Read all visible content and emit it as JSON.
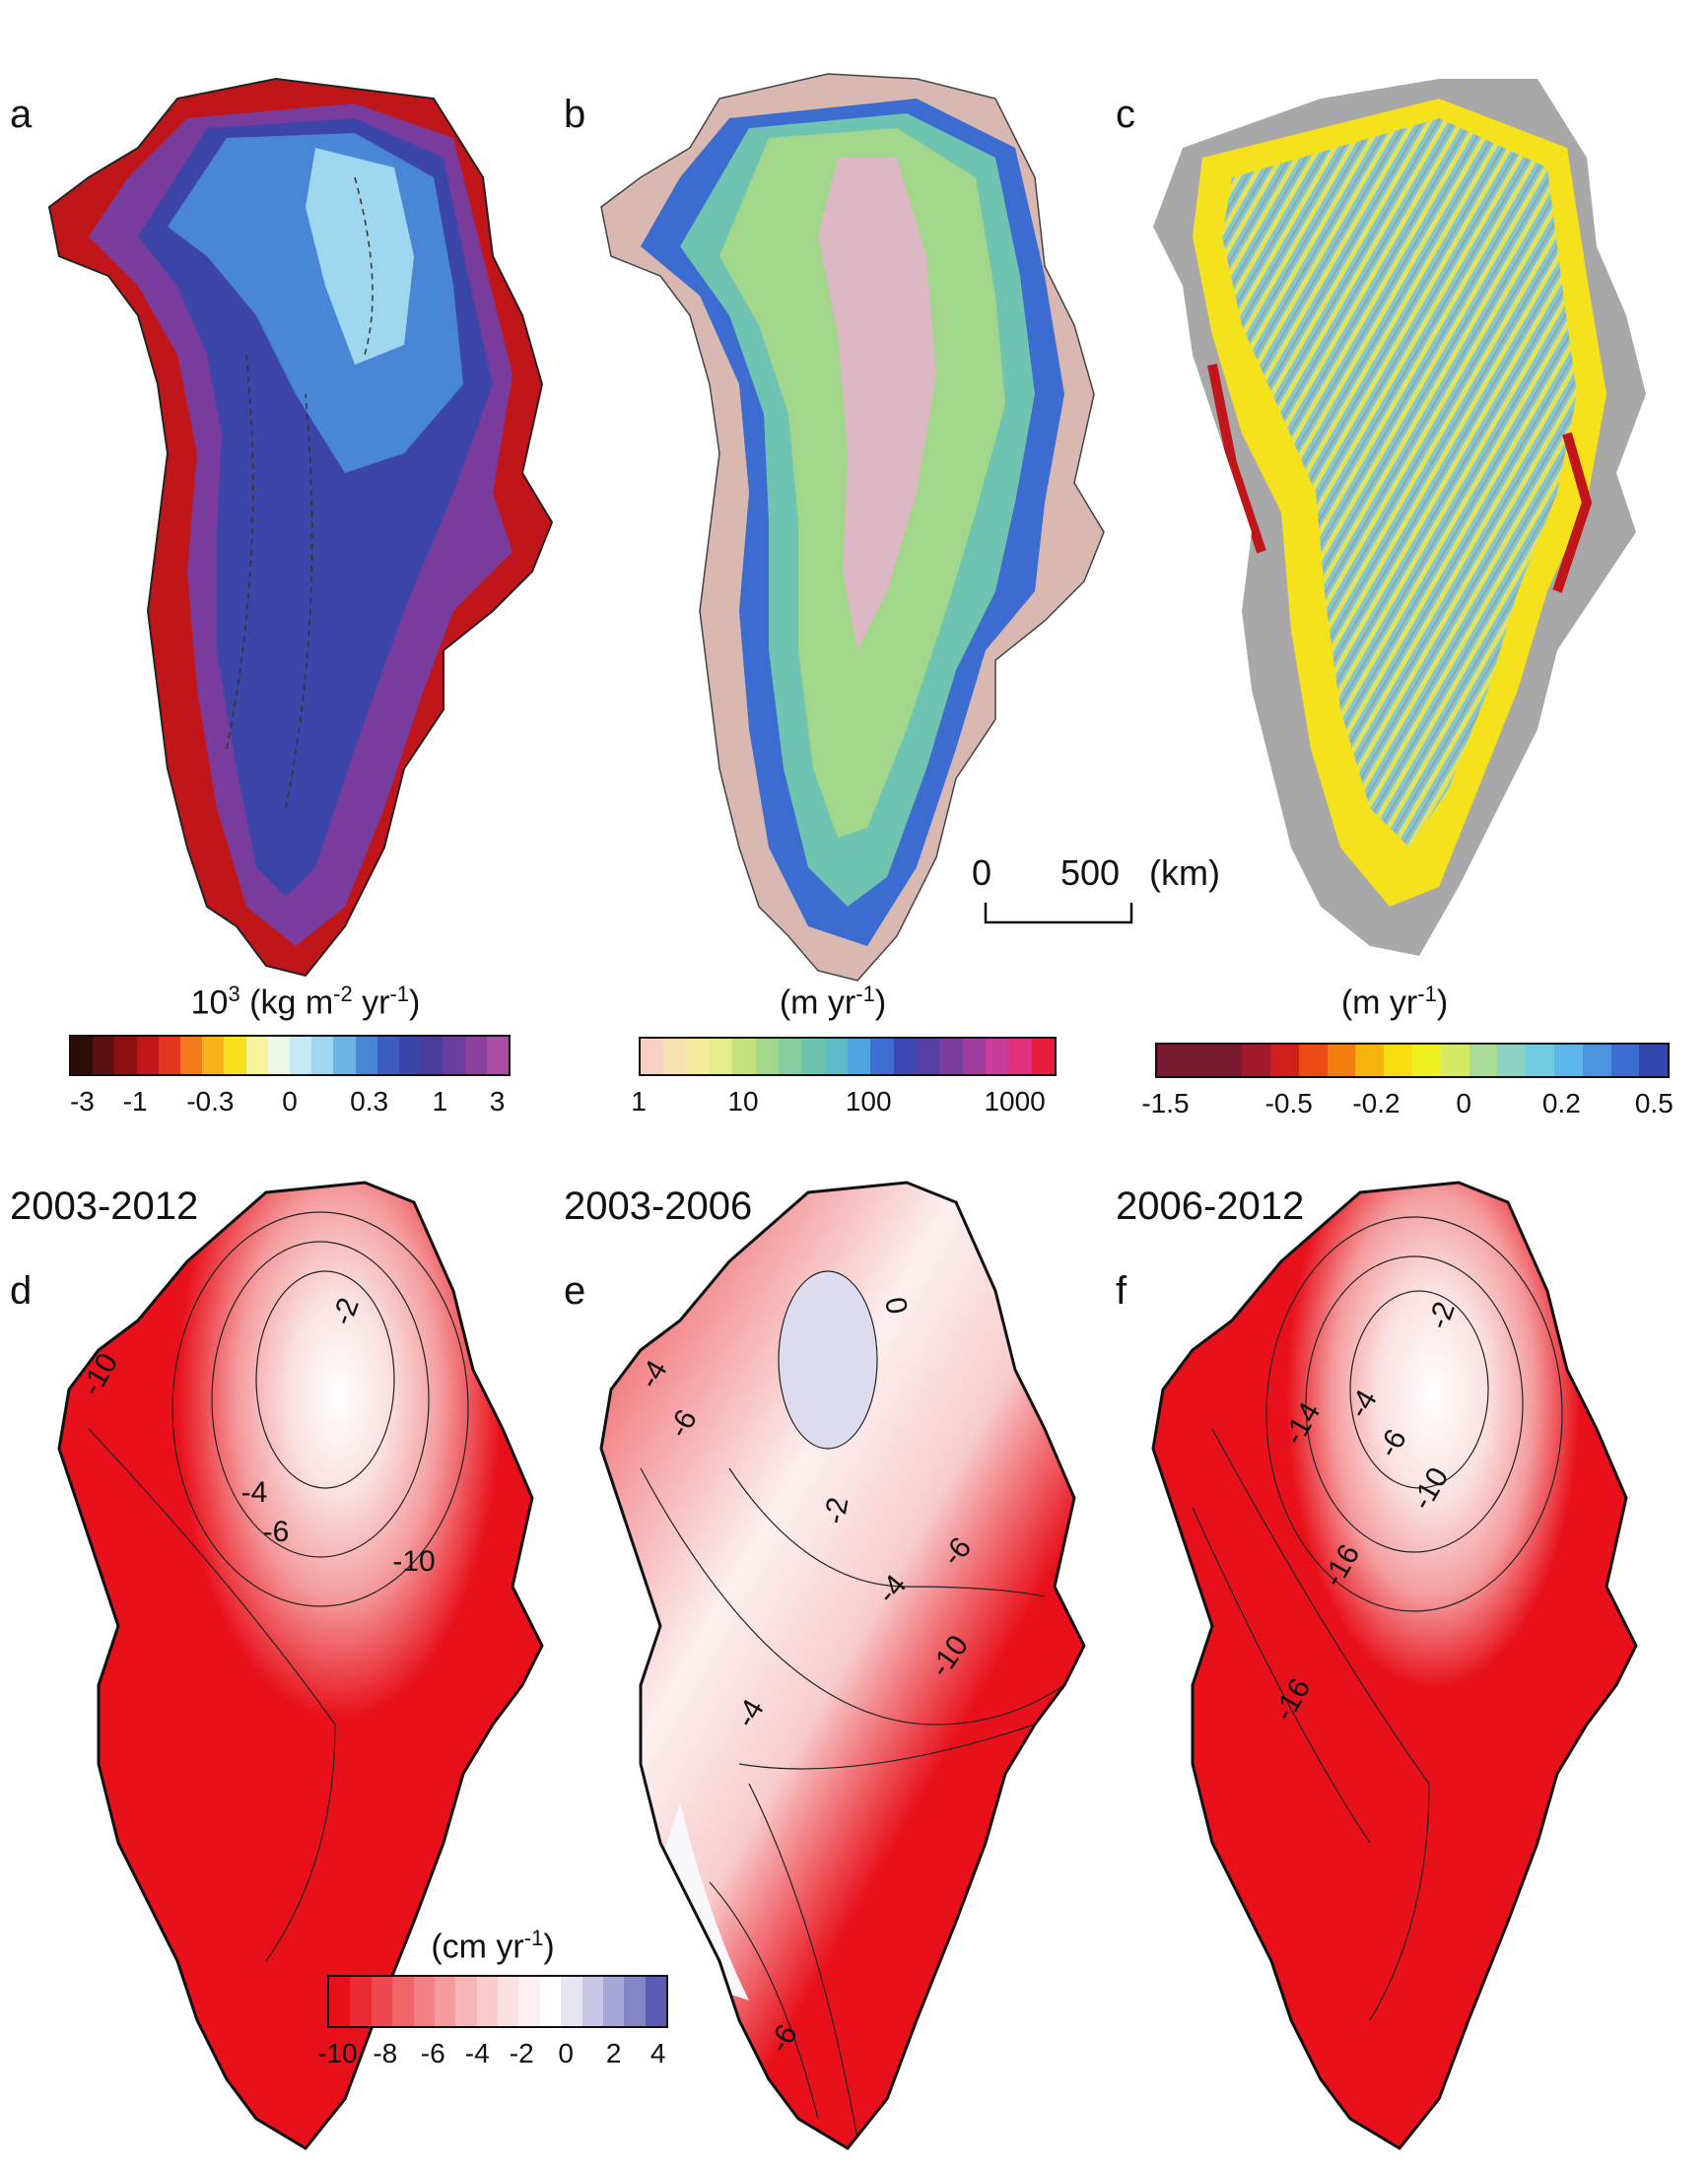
{
  "panels": {
    "a": {
      "label": "a"
    },
    "b": {
      "label": "b"
    },
    "c": {
      "label": "c"
    },
    "d": {
      "label": "d",
      "period": "2003-2012"
    },
    "e": {
      "label": "e",
      "period": "2003-2006"
    },
    "f": {
      "label": "f",
      "period": "2006-2012"
    }
  },
  "colorbars": {
    "a": {
      "exponent": "3",
      "unit_pre": "10",
      "unit": "(kg m",
      "unit_mid": "-2",
      "unit_mid2": " yr",
      "unit_sup": "-1",
      "unit_close": ")",
      "ticks": [
        "-3",
        "-1",
        "-0.3",
        "0",
        "0.3",
        "1",
        "3"
      ],
      "colors": [
        "#2b0e0a",
        "#5a1010",
        "#8c1010",
        "#c0161a",
        "#e4361e",
        "#f57a1e",
        "#f8b31c",
        "#f6e21c",
        "#f6f2a0",
        "#eef6e8",
        "#c6e8f4",
        "#9ed6ee",
        "#6cb4e6",
        "#4a86d6",
        "#3c5cc0",
        "#3b46a8",
        "#4a3c9c",
        "#6a3c9c",
        "#8a409e",
        "#a84ca4"
      ]
    },
    "b": {
      "unit": "(m yr",
      "unit_sup": "-1",
      "unit_close": ")",
      "ticks": [
        "1",
        "10",
        "100",
        "1000"
      ],
      "colors": [
        "#f9d0c4",
        "#f8e2b0",
        "#f4ec9c",
        "#e4ec8c",
        "#c4e27c",
        "#a2d68a",
        "#86cc9c",
        "#6ec4b0",
        "#5cbcc8",
        "#4ea4dc",
        "#3e6ed4",
        "#3c48b4",
        "#5640a4",
        "#7a3c9c",
        "#a03ca0",
        "#c83c9c",
        "#e0307a",
        "#e81c3c"
      ]
    },
    "c": {
      "unit": "(m yr",
      "unit_sup": "-1",
      "unit_close": ")",
      "ticks": [
        "-1.5",
        "-0.5",
        "-0.2",
        "0",
        "0.2",
        "0.5"
      ],
      "colors": [
        "#7a1a30",
        "#7a1a30",
        "#7a1a30",
        "#a01a2c",
        "#d0201e",
        "#ec4a16",
        "#f47e10",
        "#f8b40c",
        "#f6de10",
        "#eef020",
        "#d4ea60",
        "#a8dc98",
        "#8cd2c0",
        "#72cce0",
        "#5cb8ea",
        "#4a94e0",
        "#3c6cd0",
        "#3448b0"
      ]
    },
    "d": {
      "unit": "(cm yr",
      "unit_sup": "-1",
      "unit_close": ")",
      "ticks": [
        "-10",
        "-8",
        "-6",
        "-4",
        "-2",
        "0",
        "2",
        "4"
      ],
      "colors": [
        "#e8101a",
        "#ec2c34",
        "#ee4850",
        "#f0646a",
        "#f28084",
        "#f49c9e",
        "#f6b6b8",
        "#f8cccd",
        "#fae0e0",
        "#fcf0f0",
        "#ffffff",
        "#e6e6f2",
        "#c8c8e6",
        "#a6a6d8",
        "#8484c8",
        "#5c5cb4"
      ]
    }
  },
  "scalebar": {
    "start": "0",
    "end": "500",
    "unit": "(km)"
  },
  "contours": {
    "d": [
      "-10",
      "-2",
      "-4",
      "-6",
      "-10"
    ],
    "e": [
      "0",
      "-4",
      "-6",
      "-2",
      "-4",
      "-6",
      "-10",
      "-4",
      "-6"
    ],
    "f": [
      "-2",
      "-4",
      "-6",
      "-10",
      "-14",
      "-16",
      "-16"
    ]
  }
}
